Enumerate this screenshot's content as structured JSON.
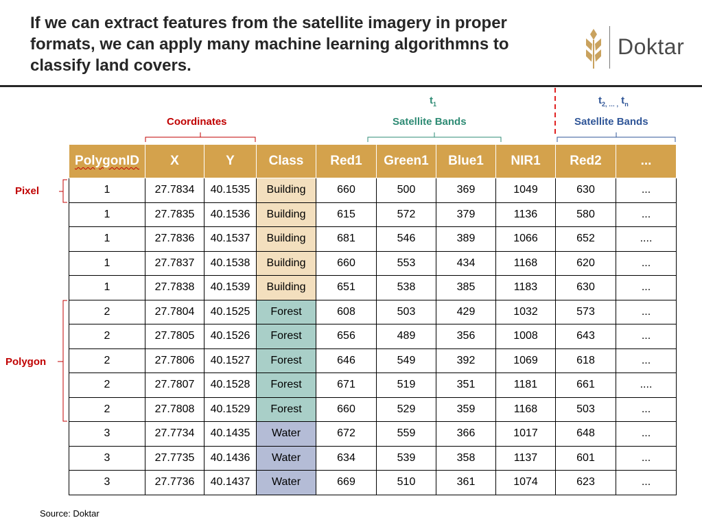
{
  "title": "If we can extract features from the satellite imagery in proper formats, we can apply many machine learning algorithmns to classify land covers.",
  "logo": {
    "text": "Doktar",
    "icon": "wheat-icon",
    "color": "#c9a25e"
  },
  "annotations": {
    "coordinates": "Coordinates",
    "t1": "t",
    "t1_sub": "1",
    "satellite_bands_1": "Satellite Bands",
    "t2_t": "t",
    "t2_sub": "2, … ,",
    "tn_t": " t",
    "tn_sub": "n",
    "satellite_bands_2": "Satellite Bands",
    "pixel": "Pixel",
    "polygon": "Polygon"
  },
  "table": {
    "headers": [
      "PolygonID",
      "X",
      "Y",
      "Class",
      "Red1",
      "Green1",
      "Blue1",
      "NIR1",
      "Red2",
      "..."
    ],
    "rows": [
      [
        "1",
        "27.7834",
        "40.1535",
        "Building",
        "660",
        "500",
        "369",
        "1049",
        "630",
        "..."
      ],
      [
        "1",
        "27.7835",
        "40.1536",
        "Building",
        "615",
        "572",
        "379",
        "1136",
        "580",
        "..."
      ],
      [
        "1",
        "27.7836",
        "40.1537",
        "Building",
        "681",
        "546",
        "389",
        "1066",
        "652",
        "...."
      ],
      [
        "1",
        "27.7837",
        "40.1538",
        "Building",
        "660",
        "553",
        "434",
        "1168",
        "620",
        "..."
      ],
      [
        "1",
        "27.7838",
        "40.1539",
        "Building",
        "651",
        "538",
        "385",
        "1183",
        "630",
        "..."
      ],
      [
        "2",
        "27.7804",
        "40.1525",
        "Forest",
        "608",
        "503",
        "429",
        "1032",
        "573",
        "..."
      ],
      [
        "2",
        "27.7805",
        "40.1526",
        "Forest",
        "656",
        "489",
        "356",
        "1008",
        "643",
        "..."
      ],
      [
        "2",
        "27.7806",
        "40.1527",
        "Forest",
        "646",
        "549",
        "392",
        "1069",
        "618",
        "..."
      ],
      [
        "2",
        "27.7807",
        "40.1528",
        "Forest",
        "671",
        "519",
        "351",
        "1181",
        "661",
        "...."
      ],
      [
        "2",
        "27.7808",
        "40.1529",
        "Forest",
        "660",
        "529",
        "359",
        "1168",
        "503",
        "..."
      ],
      [
        "3",
        "27.7734",
        "40.1435",
        "Water",
        "672",
        "559",
        "366",
        "1017",
        "648",
        "..."
      ],
      [
        "3",
        "27.7735",
        "40.1436",
        "Water",
        "634",
        "539",
        "358",
        "1137",
        "601",
        "..."
      ],
      [
        "3",
        "27.7736",
        "40.1437",
        "Water",
        "669",
        "510",
        "361",
        "1074",
        "623",
        "..."
      ]
    ]
  },
  "class_colors": {
    "Building": "#f3dfbe",
    "Forest": "#a9cfc8",
    "Water": "#b4bcd6"
  },
  "header_color": "#d4a24c",
  "source": "Source:  Doktar"
}
